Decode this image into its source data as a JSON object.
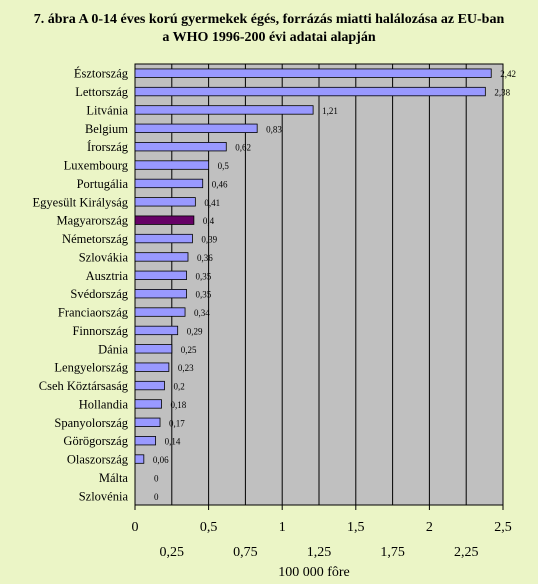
{
  "chart_data": {
    "type": "bar",
    "orientation": "horizontal",
    "title_lines": [
      "7. ábra A 0-14 éves korú gyermekek égés, forrázás miatti halálozása az EU-ban",
      "a WHO 1996-200 évi adatai alapján"
    ],
    "xlabel": "100 000 fôre",
    "categories": [
      "Észtország",
      "Lettország",
      "Litvánia",
      "Belgium",
      "Írország",
      "Luxembourg",
      "Portugália",
      "Egyesült Királyság",
      "Magyarország",
      "Németország",
      "Szlovákia",
      "Ausztria",
      "Svédország",
      "Franciaország",
      "Finnország",
      "Dánia",
      "Lengyelország",
      "Cseh Köztársaság",
      "Hollandia",
      "Spanyolország",
      "Görögország",
      "Olaszország",
      "Málta",
      "Szlovénia"
    ],
    "values": [
      2.42,
      2.38,
      1.21,
      0.83,
      0.62,
      0.5,
      0.46,
      0.41,
      0.4,
      0.39,
      0.36,
      0.35,
      0.35,
      0.34,
      0.29,
      0.25,
      0.23,
      0.2,
      0.18,
      0.17,
      0.14,
      0.06,
      0,
      0
    ],
    "value_labels": [
      "2,42",
      "2,38",
      "1,21",
      "0,83",
      "0,62",
      "0,5",
      "0,46",
      "0,41",
      "0,4",
      "0,39",
      "0,36",
      "0,35",
      "0,35",
      "0,34",
      "0,29",
      "0,25",
      "0,23",
      "0,2",
      "0,18",
      "0,17",
      "0,14",
      "0,06",
      "0",
      "0"
    ],
    "highlight_category": "Magyarország",
    "xlim": [
      0,
      2.5
    ],
    "major_ticks": [
      0,
      0.5,
      1,
      1.5,
      2,
      2.5
    ],
    "major_tick_labels": [
      "0",
      "0,5",
      "1",
      "1,5",
      "2",
      "2,5"
    ],
    "minor_ticks": [
      0.25,
      0.75,
      1.25,
      1.75,
      2.25
    ],
    "minor_tick_labels": [
      "0,25",
      "0,75",
      "1,25",
      "1,75",
      "2,25"
    ],
    "grid": true,
    "colors": {
      "bar": "#9999ff",
      "highlight": "#660066",
      "plot_background": "#c0c0c0",
      "page_background": "#ebf5c6"
    }
  }
}
